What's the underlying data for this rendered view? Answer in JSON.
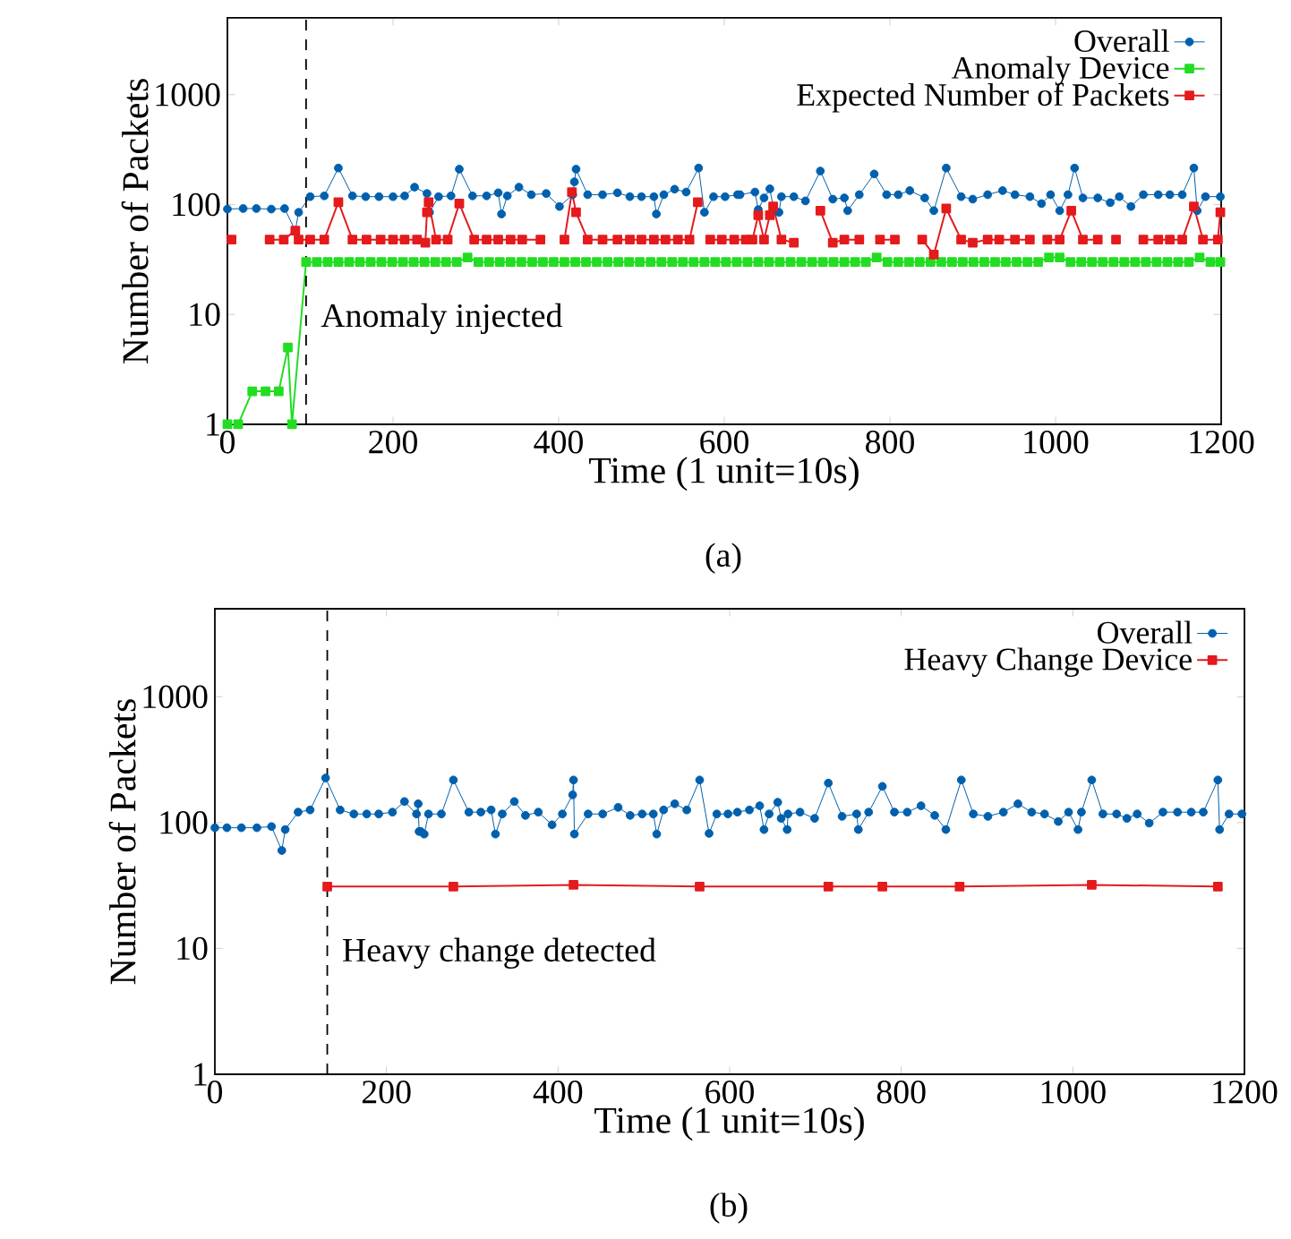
{
  "chart_data": [
    {
      "type": "line",
      "xlabel": "Time (1 unit=10s)",
      "ylabel": "Number of Packets",
      "log": "y",
      "legend": "top right",
      "line_style": "solid",
      "xlim": [
        0,
        1200
      ],
      "xticks": [
        0,
        200,
        400,
        600,
        800,
        1000,
        1200
      ],
      "ylim": [
        1,
        5000
      ],
      "yticks": [
        1,
        10,
        100,
        1000
      ],
      "ref_lines": [
        {
          "axis": "x",
          "value": 95,
          "label": "Anomaly injected",
          "color": "#000000",
          "line_style": "dashed"
        }
      ],
      "annotations": [
        "(a)"
      ],
      "series": [
        {
          "name": "Overall",
          "color": "#0060ad",
          "marker": "circle",
          "x": [
            0,
            19,
            35,
            53,
            69,
            82,
            86,
            100,
            117,
            134,
            151,
            167,
            183,
            200,
            214,
            226,
            241,
            244,
            255,
            270,
            280,
            296,
            313,
            327,
            331,
            338,
            352,
            367,
            385,
            401,
            417,
            419,
            421,
            435,
            453,
            471,
            486,
            500,
            515,
            518,
            527,
            540,
            554,
            569,
            576,
            587,
            601,
            616,
            619,
            637,
            641,
            648,
            655,
            659,
            666,
            669,
            684,
            698,
            716,
            731,
            745,
            749,
            763,
            781,
            796,
            810,
            824,
            842,
            853,
            868,
            886,
            900,
            918,
            936,
            951,
            969,
            983,
            994,
            1005,
            1015,
            1023,
            1033,
            1051,
            1066,
            1077,
            1091,
            1106,
            1124,
            1138,
            1153,
            1167,
            1171,
            1181,
            1199
          ],
          "values": [
            91,
            92,
            92,
            91,
            92,
            58,
            85,
            118,
            120,
            215,
            120,
            118,
            118,
            118,
            120,
            144,
            126,
            85,
            118,
            120,
            210,
            120,
            120,
            128,
            82,
            120,
            144,
            123,
            126,
            96,
            123,
            161,
            210,
            123,
            123,
            128,
            118,
            118,
            118,
            82,
            123,
            138,
            130,
            215,
            85,
            118,
            118,
            123,
            123,
            130,
            90,
            115,
            139,
            96,
            85,
            118,
            118,
            108,
            202,
            112,
            115,
            88,
            123,
            190,
            123,
            123,
            134,
            115,
            88,
            215,
            118,
            112,
            123,
            134,
            123,
            118,
            102,
            123,
            88,
            123,
            215,
            115,
            115,
            104,
            118,
            96,
            123,
            123,
            123,
            123,
            215,
            88,
            118,
            118
          ]
        },
        {
          "name": "Anomaly Device",
          "color": "#22dd22",
          "marker": "square",
          "x": [
            0,
            13,
            30,
            46,
            62,
            73,
            78,
            95,
            108,
            121,
            134,
            147,
            160,
            173,
            186,
            199,
            212,
            225,
            238,
            251,
            264,
            277,
            290,
            303,
            316,
            329,
            342,
            355,
            368,
            381,
            394,
            407,
            420,
            433,
            446,
            459,
            472,
            485,
            498,
            511,
            524,
            537,
            550,
            563,
            576,
            589,
            602,
            615,
            628,
            641,
            654,
            667,
            680,
            693,
            706,
            719,
            732,
            745,
            758,
            771,
            784,
            797,
            810,
            823,
            836,
            849,
            862,
            875,
            888,
            901,
            914,
            927,
            940,
            953,
            966,
            979,
            992,
            1005,
            1018,
            1031,
            1044,
            1057,
            1070,
            1083,
            1096,
            1109,
            1122,
            1135,
            1148,
            1161,
            1174,
            1187,
            1199
          ],
          "values": [
            1,
            1,
            2,
            2,
            2,
            5,
            1,
            30,
            30,
            30,
            30,
            30,
            30,
            30,
            30,
            30,
            30,
            30,
            30,
            30,
            30,
            30,
            33,
            30,
            30,
            30,
            30,
            30,
            30,
            30,
            30,
            30,
            30,
            30,
            30,
            30,
            30,
            30,
            30,
            30,
            30,
            30,
            30,
            30,
            30,
            30,
            30,
            30,
            30,
            30,
            30,
            30,
            30,
            30,
            30,
            30,
            30,
            30,
            30,
            30,
            33,
            30,
            30,
            30,
            30,
            30,
            30,
            30,
            30,
            30,
            30,
            30,
            30,
            30,
            30,
            30,
            33,
            33,
            30,
            30,
            30,
            30,
            30,
            30,
            30,
            30,
            30,
            30,
            30,
            30,
            33,
            30,
            30
          ]
        },
        {
          "name": "Expected Number of Packets",
          "color": "#e41a1c",
          "marker": "square",
          "x": [
            5,
            28,
            51,
            68,
            82,
            86,
            100,
            117,
            134,
            151,
            168,
            185,
            200,
            214,
            229,
            239,
            241,
            243,
            252,
            266,
            280,
            298,
            313,
            327,
            342,
            356,
            378,
            392,
            407,
            416,
            421,
            435,
            453,
            471,
            486,
            500,
            515,
            529,
            544,
            558,
            568,
            575,
            583,
            597,
            612,
            626,
            634,
            641,
            648,
            655,
            659,
            669,
            684,
            700,
            716,
            731,
            745,
            763,
            775,
            788,
            806,
            822,
            839,
            853,
            868,
            886,
            900,
            918,
            932,
            951,
            969,
            980,
            990,
            1005,
            1019,
            1033,
            1051,
            1062,
            1073,
            1090,
            1106,
            1124,
            1138,
            1153,
            1167,
            1178,
            1196,
            1199
          ],
          "values": [
            48,
            null,
            48,
            48,
            58,
            48,
            48,
            48,
            105,
            48,
            48,
            48,
            48,
            48,
            48,
            45,
            85,
            105,
            48,
            48,
            102,
            48,
            48,
            48,
            48,
            48,
            48,
            null,
            48,
            130,
            85,
            48,
            48,
            48,
            48,
            48,
            48,
            48,
            48,
            48,
            105,
            null,
            48,
            48,
            48,
            48,
            48,
            80,
            48,
            80,
            96,
            48,
            45,
            null,
            88,
            45,
            48,
            48,
            null,
            48,
            48,
            null,
            48,
            35,
            92,
            48,
            45,
            48,
            48,
            48,
            48,
            null,
            48,
            48,
            88,
            48,
            48,
            null,
            48,
            null,
            48,
            48,
            48,
            48,
            96,
            48,
            48,
            85
          ]
        }
      ]
    },
    {
      "type": "line",
      "xlabel": "Time (1 unit=10s)",
      "ylabel": "Number of Packets",
      "log": "y",
      "legend": "top right",
      "line_style": "solid",
      "xlim": [
        0,
        1200
      ],
      "xticks": [
        0,
        200,
        400,
        600,
        800,
        1000,
        1200
      ],
      "ylim": [
        1,
        5000
      ],
      "yticks": [
        1,
        10,
        100,
        1000
      ],
      "ref_lines": [
        {
          "axis": "x",
          "value": 131,
          "label": "Heavy change detected",
          "color": "#000000",
          "line_style": "dashed"
        }
      ],
      "annotations": [
        "(b)"
      ],
      "series": [
        {
          "name": "Overall",
          "color": "#0060ad",
          "marker": "circle",
          "x": [
            0,
            14,
            31,
            49,
            66,
            78,
            82,
            97,
            111,
            129,
            146,
            162,
            177,
            191,
            207,
            221,
            235,
            237,
            238,
            240,
            244,
            249,
            264,
            278,
            296,
            310,
            322,
            327,
            335,
            349,
            362,
            377,
            393,
            405,
            417,
            418,
            419,
            435,
            452,
            470,
            484,
            498,
            511,
            515,
            523,
            536,
            550,
            565,
            576,
            585,
            598,
            609,
            623,
            635,
            640,
            646,
            656,
            660,
            667,
            668,
            682,
            699,
            715,
            731,
            748,
            750,
            762,
            778,
            792,
            807,
            823,
            839,
            852,
            870,
            884,
            901,
            919,
            936,
            952,
            967,
            983,
            995,
            1006,
            1010,
            1022,
            1035,
            1051,
            1063,
            1075,
            1089,
            1105,
            1122,
            1138,
            1152,
            1169,
            1171,
            1182,
            1197
          ],
          "values": [
            91,
            91,
            91,
            91,
            93,
            60,
            88,
            121,
            126,
            226,
            126,
            117,
            117,
            117,
            121,
            147,
            117,
            141,
            85,
            85,
            81,
            117,
            117,
            218,
            121,
            121,
            126,
            81,
            117,
            147,
            114,
            121,
            96,
            117,
            166,
            218,
            81,
            117,
            117,
            132,
            114,
            117,
            117,
            81,
            126,
            141,
            126,
            218,
            82,
            117,
            117,
            121,
            126,
            136,
            88,
            117,
            145,
            108,
            88,
            117,
            121,
            108,
            206,
            112,
            117,
            88,
            121,
            194,
            121,
            121,
            136,
            114,
            88,
            218,
            117,
            112,
            121,
            141,
            121,
            117,
            102,
            121,
            88,
            121,
            218,
            117,
            117,
            108,
            117,
            99,
            121,
            121,
            121,
            121,
            218,
            88,
            117,
            117
          ]
        },
        {
          "name": "Heavy Change Device",
          "color": "#e41a1c",
          "marker": "square",
          "x": [
            131,
            278,
            418,
            565,
            715,
            778,
            868,
            1022,
            1169
          ],
          "values": [
            31,
            31,
            32,
            31,
            31,
            31,
            31,
            32,
            31
          ]
        }
      ]
    }
  ]
}
